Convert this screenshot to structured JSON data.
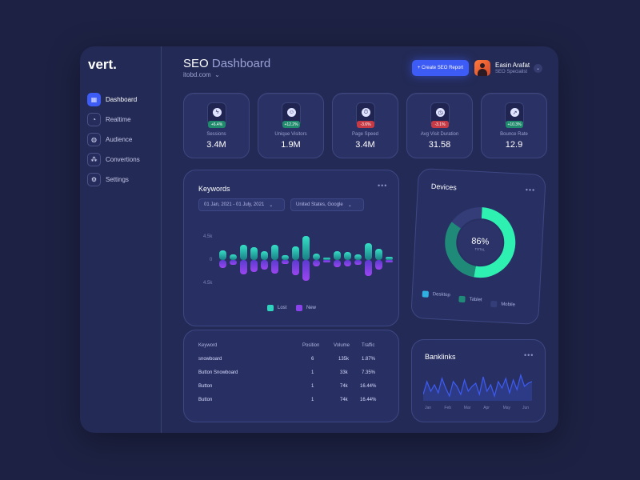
{
  "brand": {
    "logo": "vert."
  },
  "sidebar": {
    "items": [
      {
        "label": "Dashboard",
        "icon": "grid-icon",
        "glyph": "▦",
        "active": true
      },
      {
        "label": "Realtime",
        "icon": "clock-icon",
        "glyph": "◔",
        "active": false
      },
      {
        "label": "Audience",
        "icon": "globe-icon",
        "glyph": "◍",
        "active": false
      },
      {
        "label": "Convertions",
        "icon": "nodes-icon",
        "glyph": "⁂",
        "active": false
      },
      {
        "label": "Settings",
        "icon": "gear-icon",
        "glyph": "⚙",
        "active": false
      }
    ]
  },
  "header": {
    "title_strong": "SEO",
    "title_light": "Dashboard",
    "site": "itobd.com",
    "cta_label": "+ Create SEO Report",
    "user_name": "Easin Arafat",
    "user_role": "SEO Specialist"
  },
  "stats": [
    {
      "label": "Sessions",
      "value": "3.4M",
      "change": "+6.4%",
      "trend": "up",
      "icon": "lightning-icon",
      "glyph": "ϟ"
    },
    {
      "label": "Unique Visitors",
      "value": "1.9M",
      "change": "+12.2%",
      "trend": "up",
      "icon": "smiley-icon",
      "glyph": "☺"
    },
    {
      "label": "Page Speed",
      "value": "3.4M",
      "change": "-3.6%",
      "trend": "down",
      "icon": "stopwatch-icon",
      "glyph": "⏱"
    },
    {
      "label": "Avg Visit Duration",
      "value": "31.58",
      "change": "-3.1%",
      "trend": "down",
      "icon": "timer-icon",
      "glyph": "◷"
    },
    {
      "label": "Bounce Rate",
      "value": "12.9",
      "change": "+10.3%",
      "trend": "up",
      "icon": "trend-icon",
      "glyph": "↗"
    }
  ],
  "keywords": {
    "title": "Keywords",
    "date_range": "01 Jan, 2021 - 01 July, 2021",
    "location": "United States, Google",
    "y_top": "4.5k",
    "y_mid": "0",
    "y_bottom": "4.5k",
    "legend_lost": "Lost",
    "legend_new": "New",
    "colors": {
      "lost": "#2fd3bd",
      "new": "#8a43ea"
    }
  },
  "chart_data": {
    "type": "bar",
    "y_range": [
      -4.5,
      4.5
    ],
    "units": "k",
    "series": [
      {
        "name": "Lost",
        "values": [
          1.4,
          0.8,
          2.3,
          1.9,
          1.3,
          2.2,
          0.7,
          2.0,
          3.5,
          1.0,
          0.3,
          1.3,
          1.2,
          0.8,
          2.5,
          1.6,
          0.5
        ]
      },
      {
        "name": "New",
        "values": [
          -1.2,
          -0.7,
          -2.1,
          -1.8,
          -1.4,
          -2.0,
          -0.6,
          -2.3,
          -3.1,
          -0.9,
          -0.4,
          -1.1,
          -1.0,
          -0.7,
          -2.4,
          -1.4,
          -0.4
        ]
      }
    ]
  },
  "table": {
    "headers": [
      "Keyword",
      "Position",
      "Volume",
      "Traffic"
    ],
    "rows": [
      [
        "snowboard",
        "6",
        "135k",
        "1.87%"
      ],
      [
        "Button Snowboard",
        "1",
        "33k",
        "7.35%"
      ],
      [
        "Button",
        "1",
        "74k",
        "16.44%"
      ],
      [
        "Button",
        "1",
        "74k",
        "16.44%"
      ]
    ]
  },
  "devices": {
    "title": "Devices",
    "center_value": "86%",
    "center_label": "TOTAL",
    "segments": [
      {
        "name": "Desktop",
        "value": 0.52,
        "color": "#2ef0b0"
      },
      {
        "name": "Tablet",
        "value": 0.32,
        "color": "#1f8a78"
      },
      {
        "name": "Mobile",
        "value": 0.16,
        "color": "#353d78"
      }
    ],
    "legend": [
      {
        "name": "Desktop",
        "color": "#2fb0e0"
      },
      {
        "name": "Tablet",
        "color": "#1f8a78"
      },
      {
        "name": "Mobile",
        "color": "#353d78"
      }
    ]
  },
  "backlinks": {
    "title": "Banklinks",
    "months": [
      "Jan",
      "Feb",
      "Mar",
      "Apr",
      "May",
      "Jun"
    ],
    "series": [
      4,
      12,
      6,
      10,
      5,
      14,
      8,
      3,
      12,
      9,
      4,
      13,
      6,
      9,
      11,
      4,
      15,
      6,
      10,
      3,
      12,
      8,
      14,
      5,
      13,
      7,
      16,
      9,
      11,
      12
    ],
    "y_range": [
      0,
      20
    ],
    "color": "#3d5bf5"
  }
}
